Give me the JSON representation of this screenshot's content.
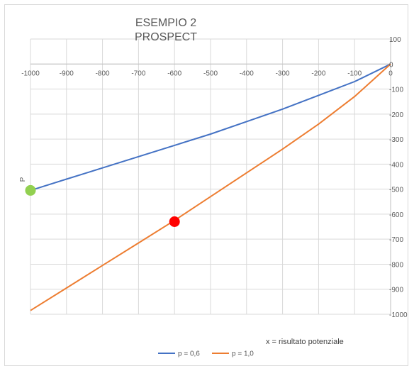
{
  "chart_data": {
    "type": "line",
    "title_lines": [
      "ESEMPIO 2",
      "PROSPECT"
    ],
    "ylabel": "P",
    "annotation": "x = risultato potenziale",
    "xlim": [
      -1000,
      0
    ],
    "ylim": [
      -1000,
      100
    ],
    "x_ticks": [
      -1000,
      -900,
      -800,
      -700,
      -600,
      -500,
      -400,
      -300,
      -200,
      -100,
      0
    ],
    "y_ticks": [
      100,
      0,
      -100,
      -200,
      -300,
      -400,
      -500,
      -600,
      -700,
      -800,
      -900,
      -1000
    ],
    "grid": true,
    "legend_position": "bottom",
    "series": [
      {
        "name": "p = 0,6",
        "color": "#4472c4",
        "x": [
          -1000,
          -900,
          -800,
          -700,
          -600,
          -500,
          -400,
          -300,
          -200,
          -100,
          0
        ],
        "y": [
          -505,
          -460,
          -415,
          -370,
          -325,
          -280,
          -230,
          -180,
          -125,
          -70,
          0
        ]
      },
      {
        "name": "p = 1,0",
        "color": "#ed7d31",
        "x": [
          -1000,
          -900,
          -800,
          -700,
          -600,
          -500,
          -400,
          -300,
          -200,
          -100,
          0
        ],
        "y": [
          -985,
          -895,
          -805,
          -715,
          -625,
          -530,
          -435,
          -340,
          -240,
          -130,
          0
        ]
      }
    ],
    "markers": [
      {
        "x": -1000,
        "y": -505,
        "color": "#92d050"
      },
      {
        "x": -600,
        "y": -630,
        "color": "#ff0000"
      }
    ]
  }
}
